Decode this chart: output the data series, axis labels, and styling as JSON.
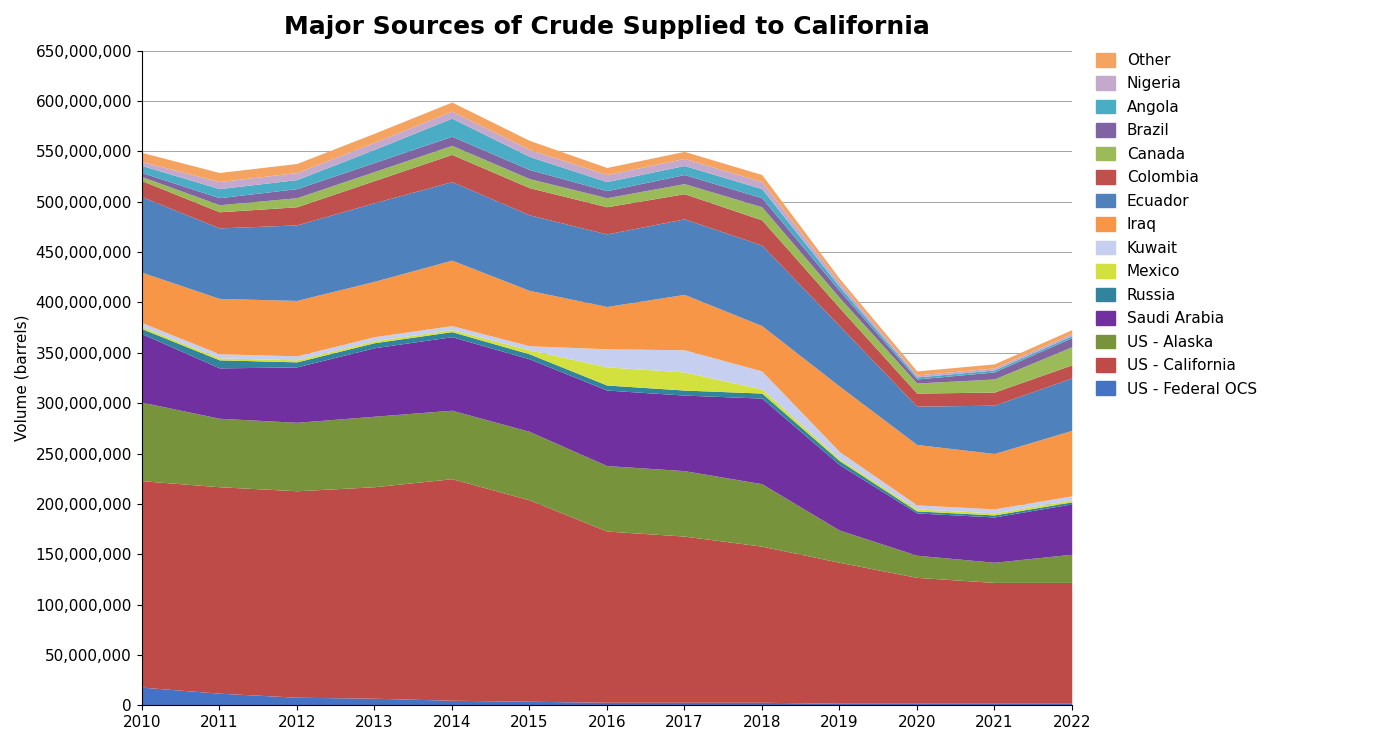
{
  "title": "Major Sources of Crude Supplied to California",
  "years": [
    2010,
    2011,
    2012,
    2013,
    2014,
    2015,
    2016,
    2017,
    2018,
    2019,
    2020,
    2021,
    2022
  ],
  "series": [
    {
      "name": "US - Federal OCS",
      "color": "#4472C4",
      "values": [
        18000000,
        12000000,
        8000000,
        7000000,
        5000000,
        4000000,
        3000000,
        3000000,
        3000000,
        2000000,
        2000000,
        2000000,
        2000000
      ]
    },
    {
      "name": "US - California",
      "color": "#BE4B48",
      "values": [
        205000000,
        205000000,
        205000000,
        210000000,
        220000000,
        200000000,
        170000000,
        165000000,
        155000000,
        140000000,
        125000000,
        120000000,
        120000000
      ]
    },
    {
      "name": "US - Alaska",
      "color": "#77933C",
      "values": [
        78000000,
        68000000,
        68000000,
        70000000,
        68000000,
        68000000,
        65000000,
        65000000,
        62000000,
        32000000,
        22000000,
        20000000,
        28000000
      ]
    },
    {
      "name": "Saudi Arabia",
      "color": "#7030A0",
      "values": [
        68000000,
        50000000,
        55000000,
        68000000,
        73000000,
        72000000,
        75000000,
        75000000,
        85000000,
        65000000,
        42000000,
        45000000,
        50000000
      ]
    },
    {
      "name": "Russia",
      "color": "#31849B",
      "values": [
        5000000,
        8000000,
        5000000,
        5000000,
        5000000,
        5000000,
        5000000,
        5000000,
        5000000,
        4000000,
        2000000,
        2000000,
        2000000
      ]
    },
    {
      "name": "Mexico",
      "color": "#D3E13F",
      "values": [
        2000000,
        2000000,
        2000000,
        2000000,
        2000000,
        4000000,
        18000000,
        18000000,
        4000000,
        2000000,
        2000000,
        2000000,
        2000000
      ]
    },
    {
      "name": "Kuwait",
      "color": "#C6CFEF",
      "values": [
        4000000,
        4000000,
        4000000,
        4000000,
        4000000,
        4000000,
        18000000,
        22000000,
        18000000,
        7000000,
        4000000,
        4000000,
        4000000
      ]
    },
    {
      "name": "Iraq",
      "color": "#F79646",
      "values": [
        50000000,
        55000000,
        55000000,
        55000000,
        65000000,
        55000000,
        42000000,
        55000000,
        45000000,
        65000000,
        60000000,
        55000000,
        65000000
      ]
    },
    {
      "name": "Ecuador",
      "color": "#4F81BD",
      "values": [
        75000000,
        70000000,
        75000000,
        78000000,
        78000000,
        75000000,
        72000000,
        75000000,
        80000000,
        60000000,
        38000000,
        48000000,
        52000000
      ]
    },
    {
      "name": "Colombia",
      "color": "#C0504D",
      "values": [
        16000000,
        16000000,
        18000000,
        22000000,
        27000000,
        27000000,
        27000000,
        25000000,
        25000000,
        18000000,
        13000000,
        13000000,
        13000000
      ]
    },
    {
      "name": "Canada",
      "color": "#9BBB59",
      "values": [
        4000000,
        7000000,
        9000000,
        9000000,
        9000000,
        9000000,
        9000000,
        10000000,
        13000000,
        10000000,
        10000000,
        13000000,
        18000000
      ]
    },
    {
      "name": "Brazil",
      "color": "#8064A2",
      "values": [
        4000000,
        7000000,
        9000000,
        9000000,
        9000000,
        9000000,
        7000000,
        9000000,
        9000000,
        7000000,
        4000000,
        7000000,
        9000000
      ]
    },
    {
      "name": "Angola",
      "color": "#4BACC6",
      "values": [
        7000000,
        9000000,
        9000000,
        13000000,
        18000000,
        13000000,
        9000000,
        9000000,
        9000000,
        4000000,
        2000000,
        2000000,
        2000000
      ]
    },
    {
      "name": "Nigeria",
      "color": "#C4A9CC",
      "values": [
        4000000,
        7000000,
        7000000,
        7000000,
        7000000,
        7000000,
        7000000,
        7000000,
        7000000,
        4000000,
        2000000,
        2000000,
        2000000
      ]
    },
    {
      "name": "Other",
      "color": "#F4A460",
      "values": [
        9000000,
        9000000,
        9000000,
        9000000,
        9000000,
        9000000,
        7000000,
        7000000,
        7000000,
        4000000,
        4000000,
        4000000,
        4000000
      ]
    }
  ],
  "ylabel": "Volume (barrels)",
  "ylim": [
    0,
    650000000
  ],
  "ytick_interval": 50000000,
  "background_color": "#ffffff",
  "title_fontsize": 18,
  "legend_fontsize": 11,
  "axis_fontsize": 11
}
